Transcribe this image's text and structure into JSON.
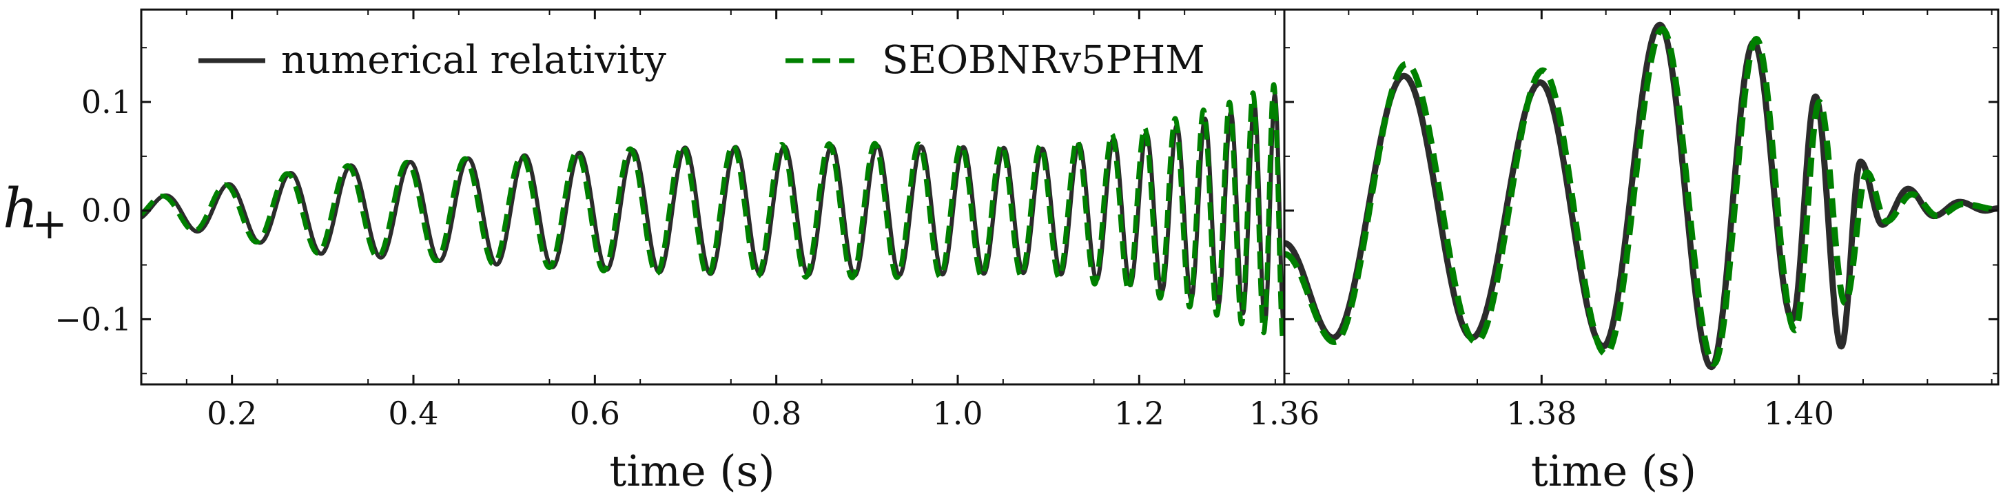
{
  "chart_data": [
    {
      "type": "line",
      "panel": "left",
      "xlabel": "time (s)",
      "ylabel": "h+",
      "ylim": [
        -0.16,
        0.185
      ],
      "xlim": [
        0.1,
        1.36
      ],
      "xticks": [
        {
          "value": 0.2,
          "label": "0.2"
        },
        {
          "value": 0.4,
          "label": "0.4"
        },
        {
          "value": 0.6,
          "label": "0.6"
        },
        {
          "value": 0.8,
          "label": "0.8"
        },
        {
          "value": 1.0,
          "label": "1.0"
        },
        {
          "value": 1.2,
          "label": "1.2"
        },
        {
          "value": 1.36,
          "label": "1.36"
        }
      ],
      "yticks": [
        {
          "value": 0.1,
          "label": "0.1"
        },
        {
          "value": 0.0,
          "label": "0.0"
        },
        {
          "value": -0.1,
          "label": "−0.1"
        }
      ],
      "legend_position": "top-left",
      "series": [
        {
          "name": "numerical relativity",
          "color": "#2b2b2b",
          "style": "solid",
          "model": {
            "t0": 0.1,
            "tc": 1.4005,
            "phase0": 4.0,
            "amplitude_start": 0.022,
            "amplitude_end": 0.1,
            "frequency_start_hz": 18.0,
            "frequency_end_hz": 120.0,
            "envelope_peaks": [
              [
                0.1,
                0.01
              ],
              [
                0.3,
                0.04
              ],
              [
                0.5,
                0.05
              ],
              [
                0.7,
                0.058
              ],
              [
                0.9,
                0.06
              ],
              [
                1.1,
                0.057
              ],
              [
                1.2,
                0.07
              ],
              [
                1.3,
                0.09
              ],
              [
                1.36,
                0.11
              ]
            ]
          }
        },
        {
          "name": "SEOBNRv5PHM",
          "color": "#008000",
          "style": "dashed",
          "model": {
            "t0": 0.1,
            "tc": 1.4005,
            "phase0": 4.35,
            "amplitude_start": 0.022,
            "amplitude_end": 0.1,
            "frequency_start_hz": 18.0,
            "frequency_end_hz": 120.0,
            "envelope_peaks": [
              [
                0.1,
                0.01
              ],
              [
                0.3,
                0.04
              ],
              [
                0.5,
                0.05
              ],
              [
                0.7,
                0.06
              ],
              [
                0.9,
                0.062
              ],
              [
                1.1,
                0.06
              ],
              [
                1.2,
                0.075
              ],
              [
                1.3,
                0.1
              ],
              [
                1.36,
                0.12
              ]
            ]
          }
        }
      ]
    },
    {
      "type": "line",
      "panel": "right",
      "xlabel": "time (s)",
      "ylim": [
        -0.16,
        0.185
      ],
      "xlim": [
        1.36,
        1.4155
      ],
      "xticks": [
        {
          "value": 1.38,
          "label": "1.38"
        },
        {
          "value": 1.4,
          "label": "1.40"
        }
      ],
      "series": [
        {
          "name": "numerical relativity",
          "color": "#2b2b2b",
          "style": "solid",
          "extrema": [
            [
              1.36,
              -0.03
            ],
            [
              1.3638,
              -0.117
            ],
            [
              1.3693,
              0.124
            ],
            [
              1.3746,
              -0.117
            ],
            [
              1.3799,
              0.118
            ],
            [
              1.3848,
              -0.125
            ],
            [
              1.3892,
              0.171
            ],
            [
              1.3932,
              -0.144
            ],
            [
              1.3965,
              0.155
            ],
            [
              1.3995,
              -0.1
            ],
            [
              1.4013,
              0.105
            ],
            [
              1.4033,
              -0.125
            ],
            [
              1.4048,
              0.045
            ],
            [
              1.4065,
              -0.013
            ],
            [
              1.4085,
              0.02
            ],
            [
              1.4105,
              -0.005
            ],
            [
              1.4125,
              0.008
            ],
            [
              1.4145,
              0.0
            ],
            [
              1.4155,
              0.002
            ]
          ]
        },
        {
          "name": "SEOBNRv5PHM",
          "color": "#008000",
          "style": "dashed",
          "extrema": [
            [
              1.36,
              -0.04
            ],
            [
              1.3639,
              -0.121
            ],
            [
              1.3695,
              0.135
            ],
            [
              1.3749,
              -0.121
            ],
            [
              1.3801,
              0.129
            ],
            [
              1.385,
              -0.132
            ],
            [
              1.3894,
              0.167
            ],
            [
              1.3934,
              -0.141
            ],
            [
              1.3967,
              0.158
            ],
            [
              1.3997,
              -0.11
            ],
            [
              1.4016,
              0.1
            ],
            [
              1.4036,
              -0.085
            ],
            [
              1.4053,
              0.035
            ],
            [
              1.4068,
              -0.01
            ],
            [
              1.4088,
              0.015
            ],
            [
              1.4108,
              -0.005
            ],
            [
              1.4128,
              0.006
            ],
            [
              1.4155,
              0.001
            ]
          ]
        }
      ]
    }
  ]
}
